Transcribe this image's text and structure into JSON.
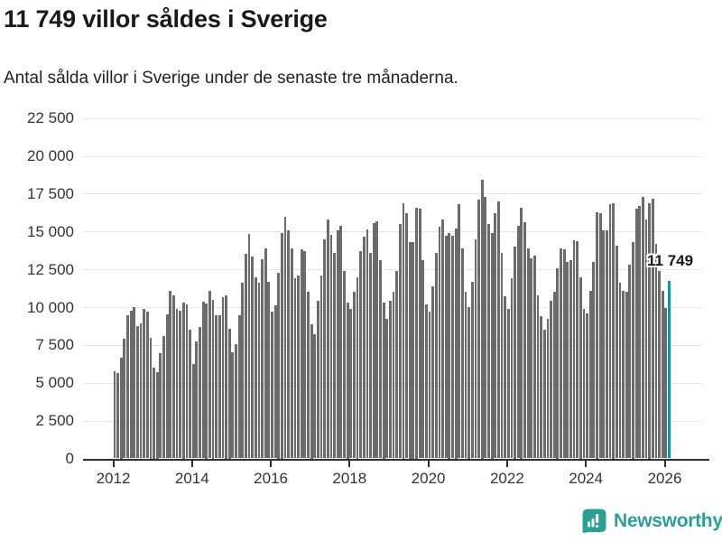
{
  "header": {
    "title": "11 749 villor såldes i Sverige",
    "subtitle": "Antal sålda villor i Sverige under de senaste tre månaderna."
  },
  "annotation": {
    "label": "11 749"
  },
  "footer": {
    "brand": "Newsworthy",
    "logo_icon": "newsworthy-speech-bubble-bar-chart-icon"
  },
  "colors": {
    "bar": "#6b6b6b",
    "highlight": "#16949c",
    "brand_teal": "#2e9d95",
    "axis": "#303030",
    "grid": "#e4e4e4",
    "tick_text": "#333333"
  },
  "chart_data": {
    "type": "bar",
    "title": "11 749 villor såldes i Sverige",
    "subtitle": "Antal sålda villor i Sverige under de senaste tre månaderna.",
    "unit": "sålda villor (rullande tremånaderssumma)",
    "frequency": "monthly",
    "start_month": "2012-01",
    "end_month": "2026-02",
    "ylim": [
      0,
      22500
    ],
    "grid": true,
    "y_ticks": [
      0,
      2500,
      5000,
      7500,
      10000,
      12500,
      15000,
      17500,
      20000,
      22500
    ],
    "y_tick_labels": [
      "0",
      "2 500",
      "5 000",
      "7 500",
      "10 000",
      "12 500",
      "15 000",
      "17 500",
      "20 000",
      "22 500"
    ],
    "x_tick_years": [
      2012,
      2014,
      2016,
      2018,
      2020,
      2022,
      2024,
      2026
    ],
    "highlight_index": 169,
    "highlight_value": 11749,
    "highlight_value_label": "11 749",
    "values": [
      5770,
      5630,
      6690,
      7920,
      9490,
      9750,
      9990,
      8760,
      8920,
      9900,
      9700,
      8000,
      6000,
      5730,
      6930,
      8080,
      9500,
      11070,
      10770,
      9890,
      9790,
      10300,
      10200,
      8500,
      6230,
      7720,
      8680,
      10370,
      10270,
      11100,
      10510,
      9450,
      9490,
      10670,
      10810,
      8600,
      6990,
      7560,
      9470,
      11600,
      13530,
      14830,
      13330,
      11960,
      11640,
      13150,
      13890,
      11700,
      9690,
      10110,
      12300,
      14900,
      15950,
      15100,
      13900,
      11900,
      12100,
      13800,
      13700,
      11000,
      8900,
      8200,
      10400,
      12100,
      14500,
      15800,
      14800,
      13600,
      15100,
      15350,
      12400,
      10300,
      9900,
      11000,
      12000,
      13700,
      14650,
      15150,
      13600,
      15550,
      15700,
      13100,
      10300,
      9200,
      10400,
      11000,
      12400,
      15500,
      16900,
      16200,
      14300,
      14300,
      16600,
      16500,
      13100,
      10200,
      9700,
      11400,
      13600,
      15300,
      15800,
      14700,
      14900,
      14700,
      15200,
      16800,
      13900,
      11000,
      10000,
      11700,
      14500,
      17100,
      18450,
      17300,
      15500,
      14900,
      16200,
      17000,
      13600,
      10700,
      9900,
      11900,
      14000,
      15400,
      16600,
      15600,
      13900,
      13200,
      13400,
      10800,
      9400,
      8500,
      9200,
      10400,
      11000,
      12600,
      13900,
      13800,
      13000,
      13100,
      14400,
      14350,
      12000,
      9900,
      9600,
      11100,
      13000,
      16300,
      16200,
      15100,
      15100,
      16800,
      16900,
      14050,
      11600,
      11100,
      11000,
      12800,
      14300,
      16500,
      16700,
      17300,
      15800,
      16900,
      17150,
      14200,
      12400,
      11050,
      9950,
      11749
    ]
  }
}
